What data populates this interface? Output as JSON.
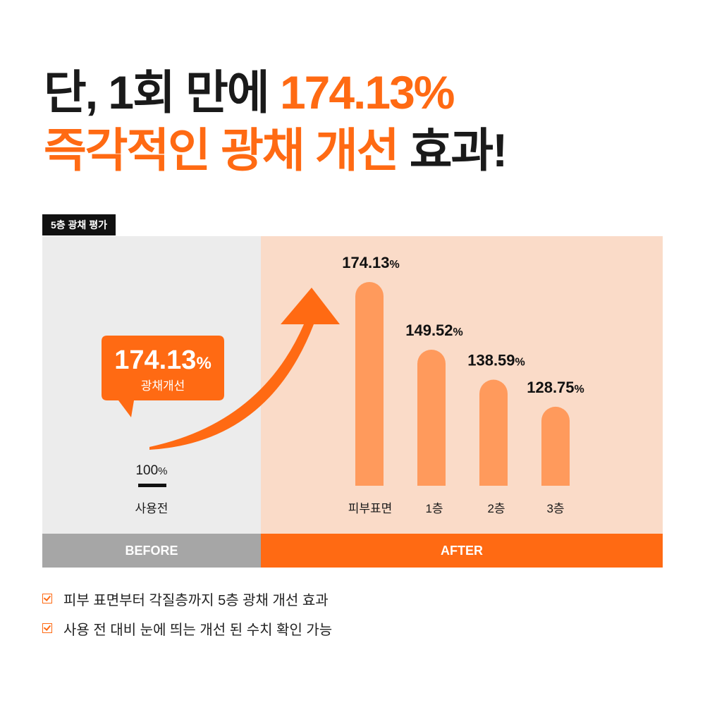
{
  "headline": {
    "line1_dark": "단, 1회 만에 ",
    "line1_accent": "174.13%",
    "line2_accent": "즉각적인 광채 개선",
    "line2_dark": " 효과!"
  },
  "tag_label": "5층 광채 평가",
  "panels": {
    "before_label": "BEFORE",
    "after_label": "AFTER"
  },
  "bubble": {
    "value": "174.13",
    "unit": "%",
    "caption": "광채개선"
  },
  "colors": {
    "accent": "#ff6a13",
    "bar": "#ff9a5c",
    "before_bg": "#ececec",
    "after_bg": "#fadbc8",
    "before_footer": "#a6a6a6"
  },
  "chart_data": {
    "type": "bar",
    "baseline": {
      "category": "사용전",
      "value": 100,
      "label": "100"
    },
    "categories": [
      "피부표면",
      "1층",
      "2층",
      "3층"
    ],
    "values": [
      174.13,
      149.52,
      138.59,
      128.75
    ],
    "value_labels": [
      "174.13",
      "149.52",
      "138.59",
      "128.75"
    ],
    "unit": "%"
  },
  "notes": [
    {
      "text": "피부 표면부터 각질층까지 5층 광채 개선 효과",
      "icon": "checkbox-icon"
    },
    {
      "text": "사용 전 대비 눈에 띄는 개선 된 수치 확인 가능",
      "icon": "checkbox-icon"
    }
  ]
}
